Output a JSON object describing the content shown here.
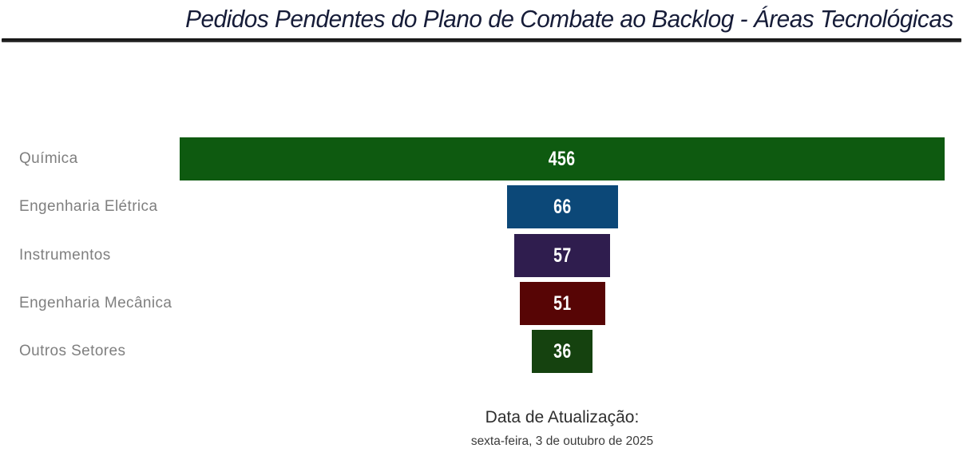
{
  "chart_data": {
    "type": "bar",
    "subtype": "funnel-horizontal-centered",
    "title": "Pedidos Pendentes do Plano de Combate ao Backlog - Áreas Tecnológicas",
    "categories": [
      "Química",
      "Engenharia Elétrica",
      "Instrumentos",
      "Engenharia Mecânica",
      "Outros Setores"
    ],
    "values": [
      456,
      66,
      57,
      51,
      36
    ],
    "colors": [
      "#0e5a10",
      "#0c4878",
      "#2f1d4e",
      "#570505",
      "#15420f"
    ],
    "value_label_color": "#ffffff",
    "category_label_color": "#7f7f7f",
    "title_color": "#161c38",
    "xlim": [
      0,
      456
    ],
    "grid": false,
    "legend": "none",
    "bars_centered_at_value_axis": true,
    "value_labels": "inside-center"
  },
  "footer": {
    "label": "Data de Atualização:",
    "value": "sexta-feira, 3 de outubro de 2025"
  }
}
